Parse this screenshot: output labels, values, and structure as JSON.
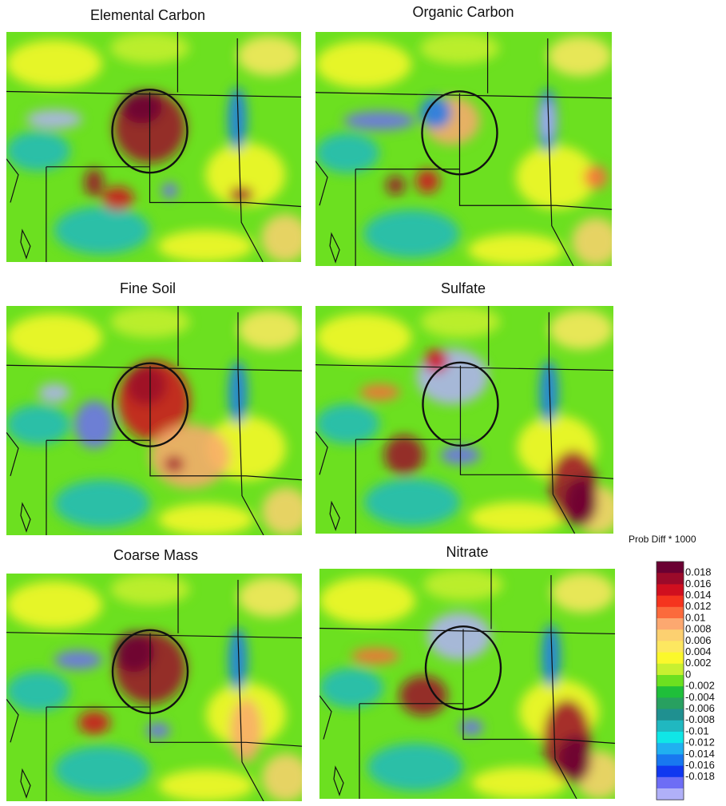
{
  "panels": [
    {
      "title": "Elemental Carbon"
    },
    {
      "title": "Organic Carbon"
    },
    {
      "title": "Fine Soil"
    },
    {
      "title": "Sulfate"
    },
    {
      "title": "Coarse Mass"
    },
    {
      "title": "Nitrate"
    }
  ],
  "colorbar": {
    "title": "Prob Diff * 1000",
    "labels": [
      "0.018",
      "0.016",
      "0.014",
      "0.012",
      "0.01",
      "0.008",
      "0.006",
      "0.004",
      "0.002",
      "0",
      "-0.002",
      "-0.004",
      "-0.006",
      "-0.008",
      "-0.01",
      "-0.012",
      "-0.014",
      "-0.016",
      "-0.018"
    ],
    "colors": [
      "#6a0032",
      "#9b0a2a",
      "#d00f1f",
      "#f5341e",
      "#fb6a3c",
      "#fca870",
      "#fcd070",
      "#fde760",
      "#fbf82c",
      "#c8f030",
      "#6ce020",
      "#1fbf3a",
      "#28a060",
      "#1f9090",
      "#20b8c0",
      "#10e6e6",
      "#20b0f0",
      "#1878f0",
      "#1038f0",
      "#6d6df5",
      "#b0b0f8"
    ]
  }
}
